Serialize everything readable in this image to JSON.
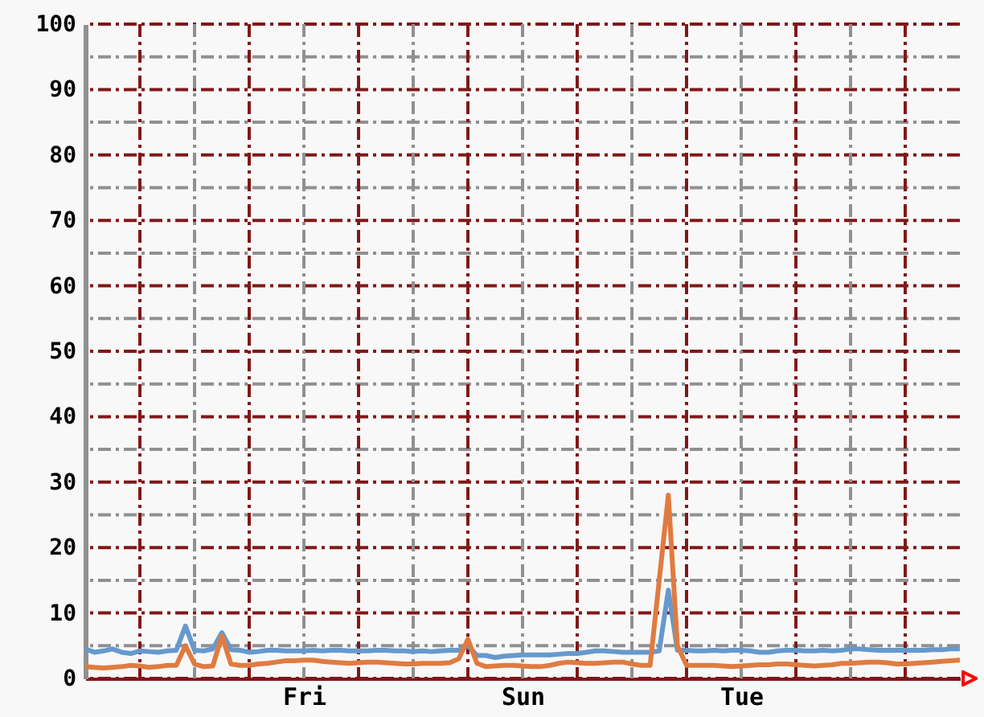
{
  "chart_data": {
    "type": "line",
    "categories": [
      null,
      null,
      null,
      null,
      null,
      null,
      null,
      null,
      null,
      null,
      null,
      null,
      null,
      null,
      null,
      null,
      null,
      null,
      null,
      null,
      null,
      null,
      null,
      null,
      "Fri",
      null,
      null,
      null,
      null,
      null,
      null,
      null,
      null,
      null,
      null,
      null,
      null,
      null,
      null,
      null,
      null,
      null,
      null,
      null,
      null,
      null,
      null,
      null,
      "Sun",
      null,
      null,
      null,
      null,
      null,
      null,
      null,
      null,
      null,
      null,
      null,
      null,
      null,
      null,
      null,
      null,
      null,
      null,
      null,
      null,
      null,
      null,
      null,
      "Tue",
      null,
      null,
      null,
      null,
      null,
      null,
      null,
      null,
      null,
      null,
      null,
      null,
      null,
      null,
      null,
      null,
      null,
      null,
      null,
      null,
      null,
      null,
      null,
      null
    ],
    "ylim": [
      0,
      100
    ],
    "yticks": [
      0,
      {
        "value": 5,
        "label": null
      },
      10,
      {
        "value": 15,
        "label": null
      },
      20,
      {
        "value": 25,
        "label": null
      },
      30,
      {
        "value": 35,
        "label": null
      },
      40,
      {
        "value": 45,
        "label": null
      },
      50,
      {
        "value": 55,
        "label": null
      },
      60,
      {
        "value": 65,
        "label": null
      },
      70,
      {
        "value": 75,
        "label": null
      },
      80,
      {
        "value": 85,
        "label": null
      },
      90,
      {
        "value": 95,
        "label": null
      },
      100
    ],
    "grid": true,
    "line_style": "solid",
    "series": [
      {
        "color": "#6699cc",
        "values": [
          4.5,
          4,
          4.2,
          4.5,
          4,
          3.8,
          4.2,
          4.1,
          4,
          4.2,
          4.3,
          8,
          4.3,
          4.2,
          4.5,
          7,
          4.4,
          4.3,
          4,
          4.1,
          4.3,
          4.3,
          4.2,
          4.2,
          4.2,
          4.3,
          4.2,
          4.3,
          4.3,
          4.2,
          4.2,
          4.2,
          4.3,
          4.3,
          4.2,
          4.2,
          4.1,
          4.2,
          4.1,
          4.2,
          4.3,
          4.3,
          5,
          3.5,
          3.5,
          3.2,
          3.4,
          3.5,
          3.6,
          3.6,
          3.6,
          3.6,
          3.7,
          3.8,
          3.8,
          4,
          4.2,
          4.2,
          4.1,
          4,
          4,
          4,
          4,
          4.2,
          13.5,
          4.3,
          4.3,
          4.2,
          4.2,
          4.3,
          4.2,
          4.3,
          4.3,
          4.2,
          4,
          4,
          4.2,
          4.3,
          4.3,
          4.2,
          4.2,
          4.3,
          4.2,
          4.3,
          4.5,
          4.5,
          4.4,
          4.3,
          4.3,
          4.3,
          4.3,
          4.3,
          4.3,
          4.4,
          4.4,
          4.5,
          4.5
        ]
      },
      {
        "color": "#e07b40",
        "values": [
          1.8,
          1.7,
          1.6,
          1.7,
          1.8,
          2,
          1.9,
          1.7,
          1.8,
          2,
          2,
          5,
          2.2,
          1.8,
          1.9,
          6.5,
          2.2,
          2,
          2,
          2.2,
          2.3,
          2.5,
          2.7,
          2.7,
          2.8,
          2.8,
          2.6,
          2.5,
          2.4,
          2.3,
          2.4,
          2.5,
          2.5,
          2.4,
          2.3,
          2.2,
          2.2,
          2.3,
          2.3,
          2.3,
          2.4,
          3,
          6,
          2.3,
          1.8,
          1.9,
          2,
          2,
          1.9,
          1.8,
          1.8,
          2,
          2.3,
          2.5,
          2.4,
          2.3,
          2.3,
          2.4,
          2.5,
          2.5,
          2.2,
          2,
          2,
          15,
          28,
          5,
          2,
          2,
          2,
          2,
          1.9,
          1.8,
          1.9,
          2,
          2.1,
          2.1,
          2.2,
          2.2,
          2.1,
          2,
          1.9,
          2,
          2.1,
          2.3,
          2.3,
          2.4,
          2.5,
          2.5,
          2.4,
          2.2,
          2.2,
          2.3,
          2.4,
          2.5,
          2.6,
          2.7,
          2.8
        ]
      }
    ]
  }
}
